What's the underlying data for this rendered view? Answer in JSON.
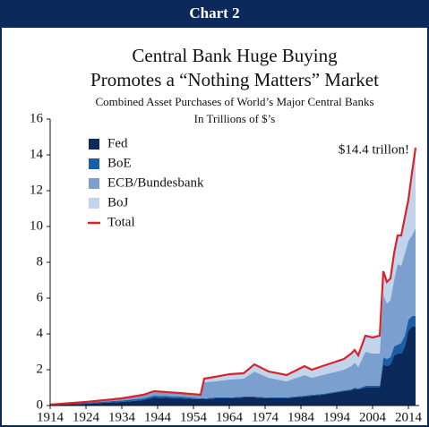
{
  "chart_data": {
    "type": "area",
    "header": "Chart 2",
    "title": [
      "Central Bank Huge Buying",
      "Promotes a “Nothing Matters” Market"
    ],
    "subtitle": [
      "Combined Asset Purchases of World’s Major Central Banks",
      "In Trillions of $’s"
    ],
    "annotation": "$14.4 trillon!",
    "x": [
      1914,
      1924,
      1934,
      1940,
      1943,
      1950,
      1956,
      1957,
      1960,
      1964,
      1968,
      1971,
      1975,
      1980,
      1982,
      1985,
      1987,
      1990,
      1993,
      1996,
      1998,
      1999,
      2000,
      2002,
      2004,
      2006,
      2007,
      2008,
      2009,
      2010,
      2011,
      2012,
      2013,
      2014,
      2015,
      2016
    ],
    "series": [
      {
        "name": "Fed",
        "color": "#0b2a5b",
        "values": [
          0.03,
          0.1,
          0.2,
          0.3,
          0.45,
          0.4,
          0.35,
          0.35,
          0.4,
          0.4,
          0.45,
          0.45,
          0.4,
          0.4,
          0.45,
          0.5,
          0.55,
          0.6,
          0.7,
          0.8,
          0.85,
          0.95,
          0.9,
          1.0,
          1.0,
          1.0,
          2.3,
          2.2,
          2.3,
          2.8,
          2.9,
          2.9,
          3.3,
          4.2,
          4.4,
          4.4
        ]
      },
      {
        "name": "BoE",
        "color": "#1a5ea8",
        "values": [
          0.01,
          0.05,
          0.08,
          0.1,
          0.1,
          0.1,
          0.05,
          0.05,
          0.05,
          0.05,
          0.05,
          0.05,
          0.05,
          0.05,
          0.05,
          0.05,
          0.05,
          0.05,
          0.05,
          0.05,
          0.05,
          0.05,
          0.05,
          0.1,
          0.1,
          0.1,
          0.4,
          0.4,
          0.4,
          0.5,
          0.5,
          0.6,
          0.6,
          0.6,
          0.6,
          0.6
        ]
      },
      {
        "name": "ECB/Bundesbank",
        "color": "#7b9fcf",
        "values": [
          0.01,
          0.05,
          0.1,
          0.15,
          0.2,
          0.15,
          0.15,
          0.9,
          0.9,
          1.0,
          1.0,
          1.4,
          1.1,
          0.9,
          1.0,
          1.15,
          0.95,
          1.05,
          1.1,
          1.15,
          1.3,
          1.4,
          1.2,
          1.9,
          1.8,
          1.8,
          3.5,
          3.1,
          3.2,
          3.7,
          4.5,
          4.3,
          4.6,
          4.4,
          4.5,
          4.9
        ]
      },
      {
        "name": "BoJ",
        "color": "#c2d4ec",
        "values": [
          0,
          0,
          0.02,
          0.05,
          0.05,
          0.05,
          0.05,
          0.2,
          0.25,
          0.3,
          0.3,
          0.4,
          0.35,
          0.35,
          0.4,
          0.5,
          0.45,
          0.5,
          0.55,
          0.6,
          0.7,
          0.7,
          0.65,
          0.9,
          0.9,
          1.0,
          1.3,
          1.2,
          1.2,
          1.5,
          1.6,
          1.7,
          2.0,
          2.3,
          3.5,
          4.5
        ]
      },
      {
        "name": "Total",
        "color": "#d8232a",
        "type": "line",
        "values": [
          0.05,
          0.2,
          0.4,
          0.6,
          0.8,
          0.7,
          0.6,
          1.5,
          1.6,
          1.75,
          1.8,
          2.3,
          1.9,
          1.7,
          1.9,
          2.2,
          2.0,
          2.2,
          2.4,
          2.6,
          2.9,
          3.1,
          2.8,
          3.9,
          3.8,
          3.9,
          7.5,
          6.9,
          7.1,
          8.5,
          9.5,
          9.5,
          10.5,
          11.5,
          13.0,
          14.4
        ]
      }
    ],
    "xlim": [
      1914,
      2017
    ],
    "xticks": [
      1914,
      1924,
      1934,
      1944,
      1954,
      1964,
      1974,
      1984,
      1994,
      2004,
      2014
    ],
    "ylim": [
      0,
      16
    ],
    "yticks": [
      0,
      2,
      4,
      6,
      8,
      10,
      12,
      14,
      16
    ],
    "grid": false,
    "legend": "upper left"
  }
}
